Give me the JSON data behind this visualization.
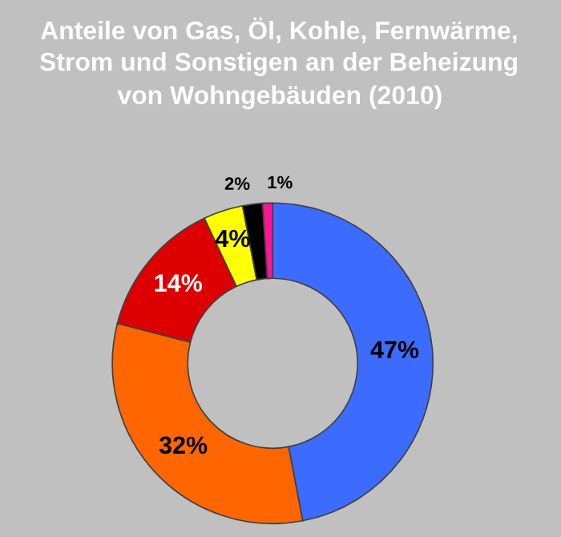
{
  "chart_data": {
    "type": "donut",
    "title": "Anteile von Gas, Öl, Kohle, Fernwärme,\nStrom und Sonstigen an der Beheizung\nvon Wohngebäuden (2010)",
    "categories": [
      null,
      null,
      null,
      null,
      null,
      null
    ],
    "values": [
      47,
      32,
      14,
      4,
      2,
      1
    ],
    "colors": [
      "#3c6cff",
      "#ff6600",
      "#dd0000",
      "#ffff00",
      "#000000",
      "#ff1493"
    ],
    "value_labels": [
      "47%",
      "32%",
      "14%",
      "4%",
      "2%",
      "1%"
    ],
    "legend": false
  }
}
